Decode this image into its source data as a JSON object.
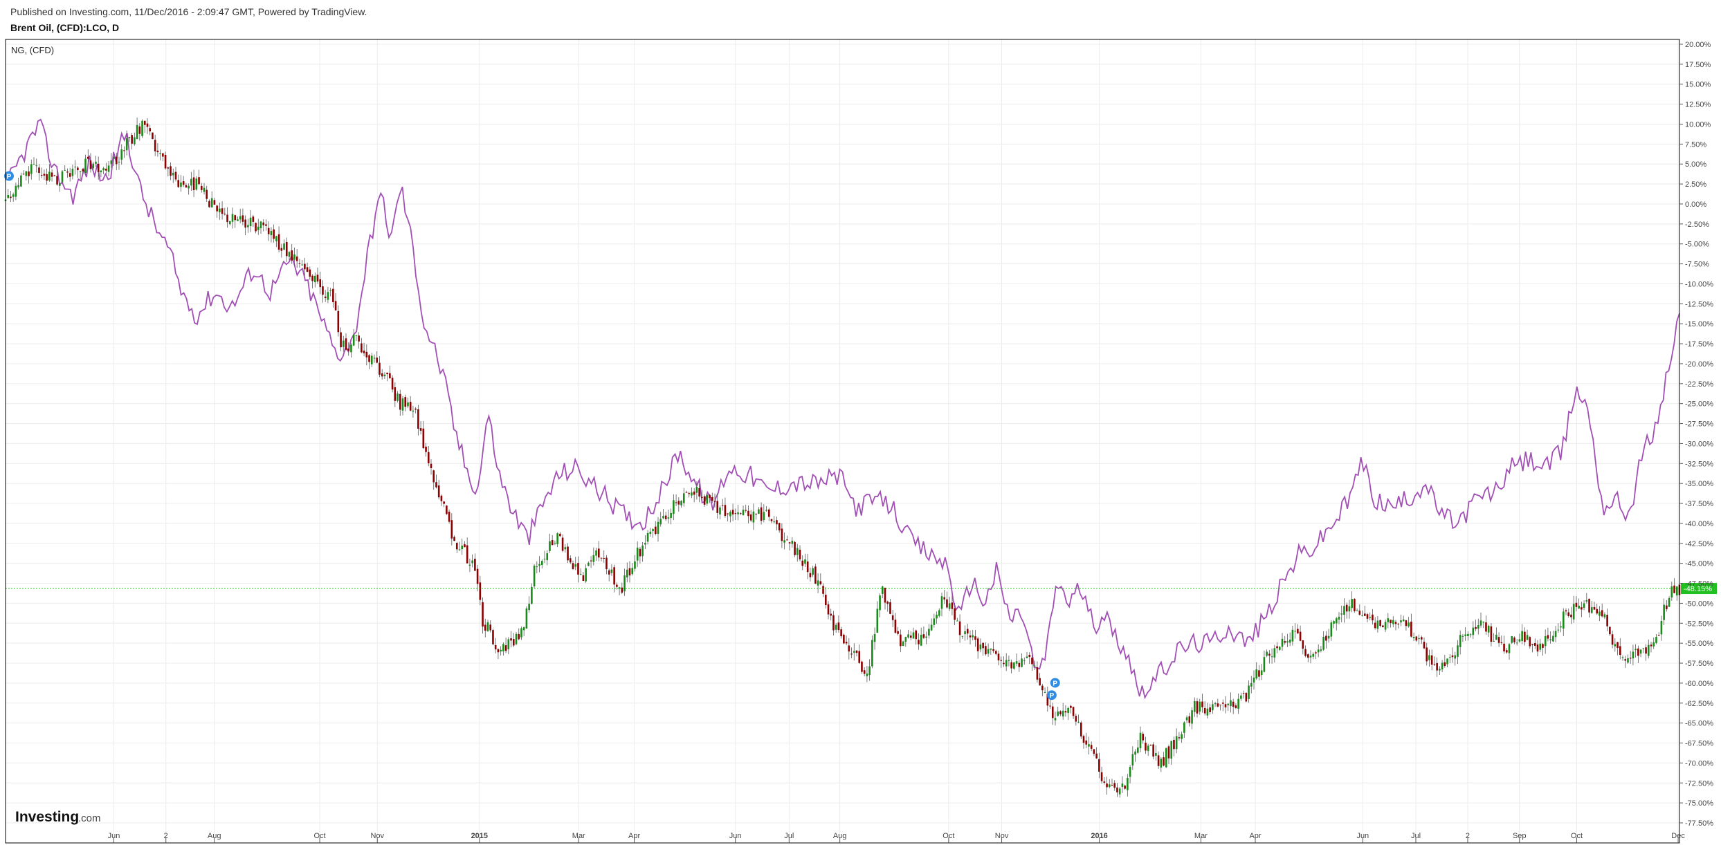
{
  "header": {
    "published": "Published on Investing.com, 11/Dec/2016 - 2:09:47 GMT, Powered by TradingView.",
    "symbol": "Brent Oil, (CFD):LCO, D"
  },
  "legend": {
    "compare_label": "NG,  (CFD)"
  },
  "logo": {
    "name": "Investing",
    "suffix": ".com"
  },
  "colors": {
    "candle_up": "#1a8a1a",
    "candle_down": "#8b0000",
    "compare_line": "#a24fb5",
    "price_line": "#22cc22",
    "price_tag_bg": "#22c022",
    "marker": "#2f8de4",
    "grid": "#ececec",
    "frame": "#000000"
  },
  "chart_data": {
    "type": "line",
    "title": "Brent Oil, (CFD):LCO, D",
    "ylabel": "",
    "y_axis_unit": "%",
    "ylim": [
      -78.5,
      21
    ],
    "y_ticks": [
      "20.00%",
      "17.50%",
      "15.00%",
      "12.50%",
      "10.00%",
      "7.50%",
      "5.00%",
      "2.50%",
      "0.00%",
      "-2.50%",
      "-5.00%",
      "-7.50%",
      "-10.00%",
      "-12.50%",
      "-15.00%",
      "-17.50%",
      "-20.00%",
      "-22.50%",
      "-25.00%",
      "-27.50%",
      "-30.00%",
      "-32.50%",
      "-35.00%",
      "-37.50%",
      "-40.00%",
      "-42.50%",
      "-45.00%",
      "-47.50%",
      "-50.00%",
      "-52.50%",
      "-55.00%",
      "-57.50%",
      "-60.00%",
      "-62.50%",
      "-65.00%",
      "-67.50%",
      "-70.00%",
      "-72.50%",
      "-75.00%",
      "-77.50%"
    ],
    "x_ticks": [
      {
        "label": "Jun",
        "year": false
      },
      {
        "label": "2",
        "year": false
      },
      {
        "label": "Aug",
        "year": false
      },
      {
        "label": "Oct",
        "year": false
      },
      {
        "label": "Nov",
        "year": false
      },
      {
        "label": "2015",
        "year": true
      },
      {
        "label": "Mar",
        "year": false
      },
      {
        "label": "Apr",
        "year": false
      },
      {
        "label": "Jun",
        "year": false
      },
      {
        "label": "Jul",
        "year": false
      },
      {
        "label": "Aug",
        "year": false
      },
      {
        "label": "Oct",
        "year": false
      },
      {
        "label": "Nov",
        "year": false
      },
      {
        "label": "2016",
        "year": true
      },
      {
        "label": "Mar",
        "year": false
      },
      {
        "label": "Apr",
        "year": false
      },
      {
        "label": "Jun",
        "year": false
      },
      {
        "label": "Jul",
        "year": false
      },
      {
        "label": "2",
        "year": false
      },
      {
        "label": "Sep",
        "year": false
      },
      {
        "label": "Oct",
        "year": false
      },
      {
        "label": "Dec",
        "year": false
      }
    ],
    "x_tick_positions": [
      0.0647,
      0.0958,
      0.1247,
      0.1877,
      0.2221,
      0.2831,
      0.3424,
      0.3756,
      0.436,
      0.4681,
      0.4984,
      0.5634,
      0.5951,
      0.6534,
      0.7141,
      0.7466,
      0.8108,
      0.8425,
      0.8735,
      0.9044,
      0.9386,
      0.9992
    ],
    "current_value_label": "-48.15%",
    "current_value": -48.15,
    "grid": true,
    "series": [
      {
        "name": "Brent Oil, (CFD):LCO, D",
        "style": "candlestick",
        "points": [
          [
            0.0,
            0.5
          ],
          [
            0.016,
            4.5
          ],
          [
            0.03,
            3.0
          ],
          [
            0.046,
            5.0
          ],
          [
            0.06,
            4.0
          ],
          [
            0.073,
            7.5
          ],
          [
            0.082,
            10.0
          ],
          [
            0.092,
            6.0
          ],
          [
            0.103,
            3.0
          ],
          [
            0.115,
            2.5
          ],
          [
            0.126,
            -1.0
          ],
          [
            0.14,
            -2.0
          ],
          [
            0.155,
            -3.0
          ],
          [
            0.168,
            -6.0
          ],
          [
            0.182,
            -9.0
          ],
          [
            0.196,
            -12.0
          ],
          [
            0.201,
            -18.0
          ],
          [
            0.21,
            -17.0
          ],
          [
            0.225,
            -21.0
          ],
          [
            0.236,
            -25.0
          ],
          [
            0.245,
            -26.0
          ],
          [
            0.256,
            -35.0
          ],
          [
            0.27,
            -43.0
          ],
          [
            0.28,
            -45.0
          ],
          [
            0.285,
            -52.0
          ],
          [
            0.295,
            -56.0
          ],
          [
            0.308,
            -54.0
          ],
          [
            0.317,
            -45.0
          ],
          [
            0.33,
            -42.0
          ],
          [
            0.345,
            -47.0
          ],
          [
            0.353,
            -44.0
          ],
          [
            0.368,
            -48.0
          ],
          [
            0.382,
            -42.0
          ],
          [
            0.398,
            -38.0
          ],
          [
            0.412,
            -36.0
          ],
          [
            0.425,
            -38.0
          ],
          [
            0.44,
            -39.0
          ],
          [
            0.455,
            -39.0
          ],
          [
            0.47,
            -43.0
          ],
          [
            0.485,
            -47.0
          ],
          [
            0.495,
            -53.0
          ],
          [
            0.515,
            -59.0
          ],
          [
            0.523,
            -48.0
          ],
          [
            0.535,
            -55.0
          ],
          [
            0.55,
            -54.0
          ],
          [
            0.56,
            -49.0
          ],
          [
            0.572,
            -54.0
          ],
          [
            0.585,
            -56.0
          ],
          [
            0.6,
            -58.0
          ],
          [
            0.613,
            -57.0
          ],
          [
            0.625,
            -64.0
          ],
          [
            0.635,
            -63.0
          ],
          [
            0.645,
            -67.0
          ],
          [
            0.658,
            -73.0
          ],
          [
            0.666,
            -74.0
          ],
          [
            0.678,
            -67.0
          ],
          [
            0.69,
            -70.0
          ],
          [
            0.7,
            -67.0
          ],
          [
            0.71,
            -63.0
          ],
          [
            0.725,
            -63.0
          ],
          [
            0.74,
            -62.0
          ],
          [
            0.755,
            -56.0
          ],
          [
            0.77,
            -54.0
          ],
          [
            0.78,
            -57.0
          ],
          [
            0.795,
            -52.0
          ],
          [
            0.805,
            -50.0
          ],
          [
            0.82,
            -53.0
          ],
          [
            0.835,
            -52.0
          ],
          [
            0.845,
            -55.0
          ],
          [
            0.855,
            -59.0
          ],
          [
            0.868,
            -55.0
          ],
          [
            0.88,
            -52.0
          ],
          [
            0.895,
            -56.0
          ],
          [
            0.905,
            -54.0
          ],
          [
            0.915,
            -56.0
          ],
          [
            0.93,
            -52.0
          ],
          [
            0.943,
            -50.0
          ],
          [
            0.955,
            -52.0
          ],
          [
            0.965,
            -57.0
          ],
          [
            0.975,
            -56.0
          ],
          [
            0.985,
            -55.0
          ],
          [
            0.995,
            -48.0
          ],
          [
            1.0,
            -48.15
          ]
        ]
      },
      {
        "name": "NG,  (CFD)",
        "style": "line",
        "points": [
          [
            0.0,
            2.0
          ],
          [
            0.01,
            6.0
          ],
          [
            0.02,
            10.0
          ],
          [
            0.03,
            4.0
          ],
          [
            0.04,
            1.0
          ],
          [
            0.05,
            5.0
          ],
          [
            0.06,
            3.0
          ],
          [
            0.072,
            9.0
          ],
          [
            0.08,
            2.0
          ],
          [
            0.09,
            -3.0
          ],
          [
            0.098,
            -6.0
          ],
          [
            0.105,
            -11.0
          ],
          [
            0.114,
            -14.0
          ],
          [
            0.125,
            -11.0
          ],
          [
            0.135,
            -13.0
          ],
          [
            0.148,
            -8.0
          ],
          [
            0.158,
            -11.0
          ],
          [
            0.17,
            -7.0
          ],
          [
            0.18,
            -10.0
          ],
          [
            0.19,
            -15.0
          ],
          [
            0.198,
            -19.0
          ],
          [
            0.208,
            -17.0
          ],
          [
            0.215,
            -8.0
          ],
          [
            0.222,
            0.0
          ],
          [
            0.226,
            0.5
          ],
          [
            0.23,
            -5.0
          ],
          [
            0.236,
            2.5
          ],
          [
            0.243,
            -5.0
          ],
          [
            0.25,
            -15.0
          ],
          [
            0.256,
            -18.0
          ],
          [
            0.262,
            -22.0
          ],
          [
            0.268,
            -28.0
          ],
          [
            0.275,
            -33.0
          ],
          [
            0.282,
            -36.0
          ],
          [
            0.288,
            -26.0
          ],
          [
            0.295,
            -34.0
          ],
          [
            0.302,
            -38.0
          ],
          [
            0.312,
            -42.0
          ],
          [
            0.32,
            -38.0
          ],
          [
            0.33,
            -34.0
          ],
          [
            0.34,
            -33.0
          ],
          [
            0.35,
            -35.0
          ],
          [
            0.36,
            -37.0
          ],
          [
            0.37,
            -39.0
          ],
          [
            0.38,
            -40.0
          ],
          [
            0.392,
            -36.0
          ],
          [
            0.402,
            -31.0
          ],
          [
            0.412,
            -35.0
          ],
          [
            0.422,
            -38.0
          ],
          [
            0.432,
            -33.0
          ],
          [
            0.445,
            -34.0
          ],
          [
            0.455,
            -36.0
          ],
          [
            0.47,
            -35.0
          ],
          [
            0.485,
            -35.0
          ],
          [
            0.498,
            -34.0
          ],
          [
            0.508,
            -38.0
          ],
          [
            0.52,
            -37.0
          ],
          [
            0.53,
            -38.0
          ],
          [
            0.54,
            -42.0
          ],
          [
            0.552,
            -44.0
          ],
          [
            0.562,
            -45.0
          ],
          [
            0.57,
            -52.0
          ],
          [
            0.577,
            -47.0
          ],
          [
            0.585,
            -50.0
          ],
          [
            0.592,
            -46.0
          ],
          [
            0.6,
            -52.0
          ],
          [
            0.607,
            -51.0
          ],
          [
            0.616,
            -59.0
          ],
          [
            0.622,
            -56.0
          ],
          [
            0.628,
            -47.0
          ],
          [
            0.635,
            -50.0
          ],
          [
            0.642,
            -48.0
          ],
          [
            0.65,
            -53.0
          ],
          [
            0.656,
            -51.0
          ],
          [
            0.662,
            -54.0
          ],
          [
            0.67,
            -56.0
          ],
          [
            0.677,
            -61.0
          ],
          [
            0.685,
            -60.0
          ],
          [
            0.693,
            -58.0
          ],
          [
            0.7,
            -56.0
          ],
          [
            0.71,
            -55.0
          ],
          [
            0.72,
            -55.0
          ],
          [
            0.73,
            -53.0
          ],
          [
            0.742,
            -55.0
          ],
          [
            0.752,
            -52.0
          ],
          [
            0.762,
            -48.0
          ],
          [
            0.772,
            -44.0
          ],
          [
            0.782,
            -43.0
          ],
          [
            0.793,
            -40.0
          ],
          [
            0.803,
            -37.0
          ],
          [
            0.81,
            -32.0
          ],
          [
            0.818,
            -37.0
          ],
          [
            0.828,
            -38.0
          ],
          [
            0.838,
            -37.0
          ],
          [
            0.848,
            -35.0
          ],
          [
            0.858,
            -39.0
          ],
          [
            0.868,
            -40.0
          ],
          [
            0.878,
            -37.0
          ],
          [
            0.89,
            -36.0
          ],
          [
            0.9,
            -33.0
          ],
          [
            0.91,
            -32.0
          ],
          [
            0.92,
            -33.0
          ],
          [
            0.93,
            -31.0
          ],
          [
            0.938,
            -23.0
          ],
          [
            0.946,
            -26.0
          ],
          [
            0.954,
            -38.0
          ],
          [
            0.962,
            -37.0
          ],
          [
            0.97,
            -39.0
          ],
          [
            0.978,
            -31.0
          ],
          [
            0.986,
            -28.0
          ],
          [
            0.992,
            -22.0
          ],
          [
            0.996,
            -18.0
          ],
          [
            1.0,
            -14.0
          ]
        ]
      }
    ],
    "markers": [
      {
        "label": "P",
        "x": 0.0,
        "y": 3.5
      },
      {
        "label": "P",
        "x": 0.625,
        "y": -61.5
      },
      {
        "label": "P",
        "x": 0.627,
        "y": -61.0
      }
    ]
  }
}
